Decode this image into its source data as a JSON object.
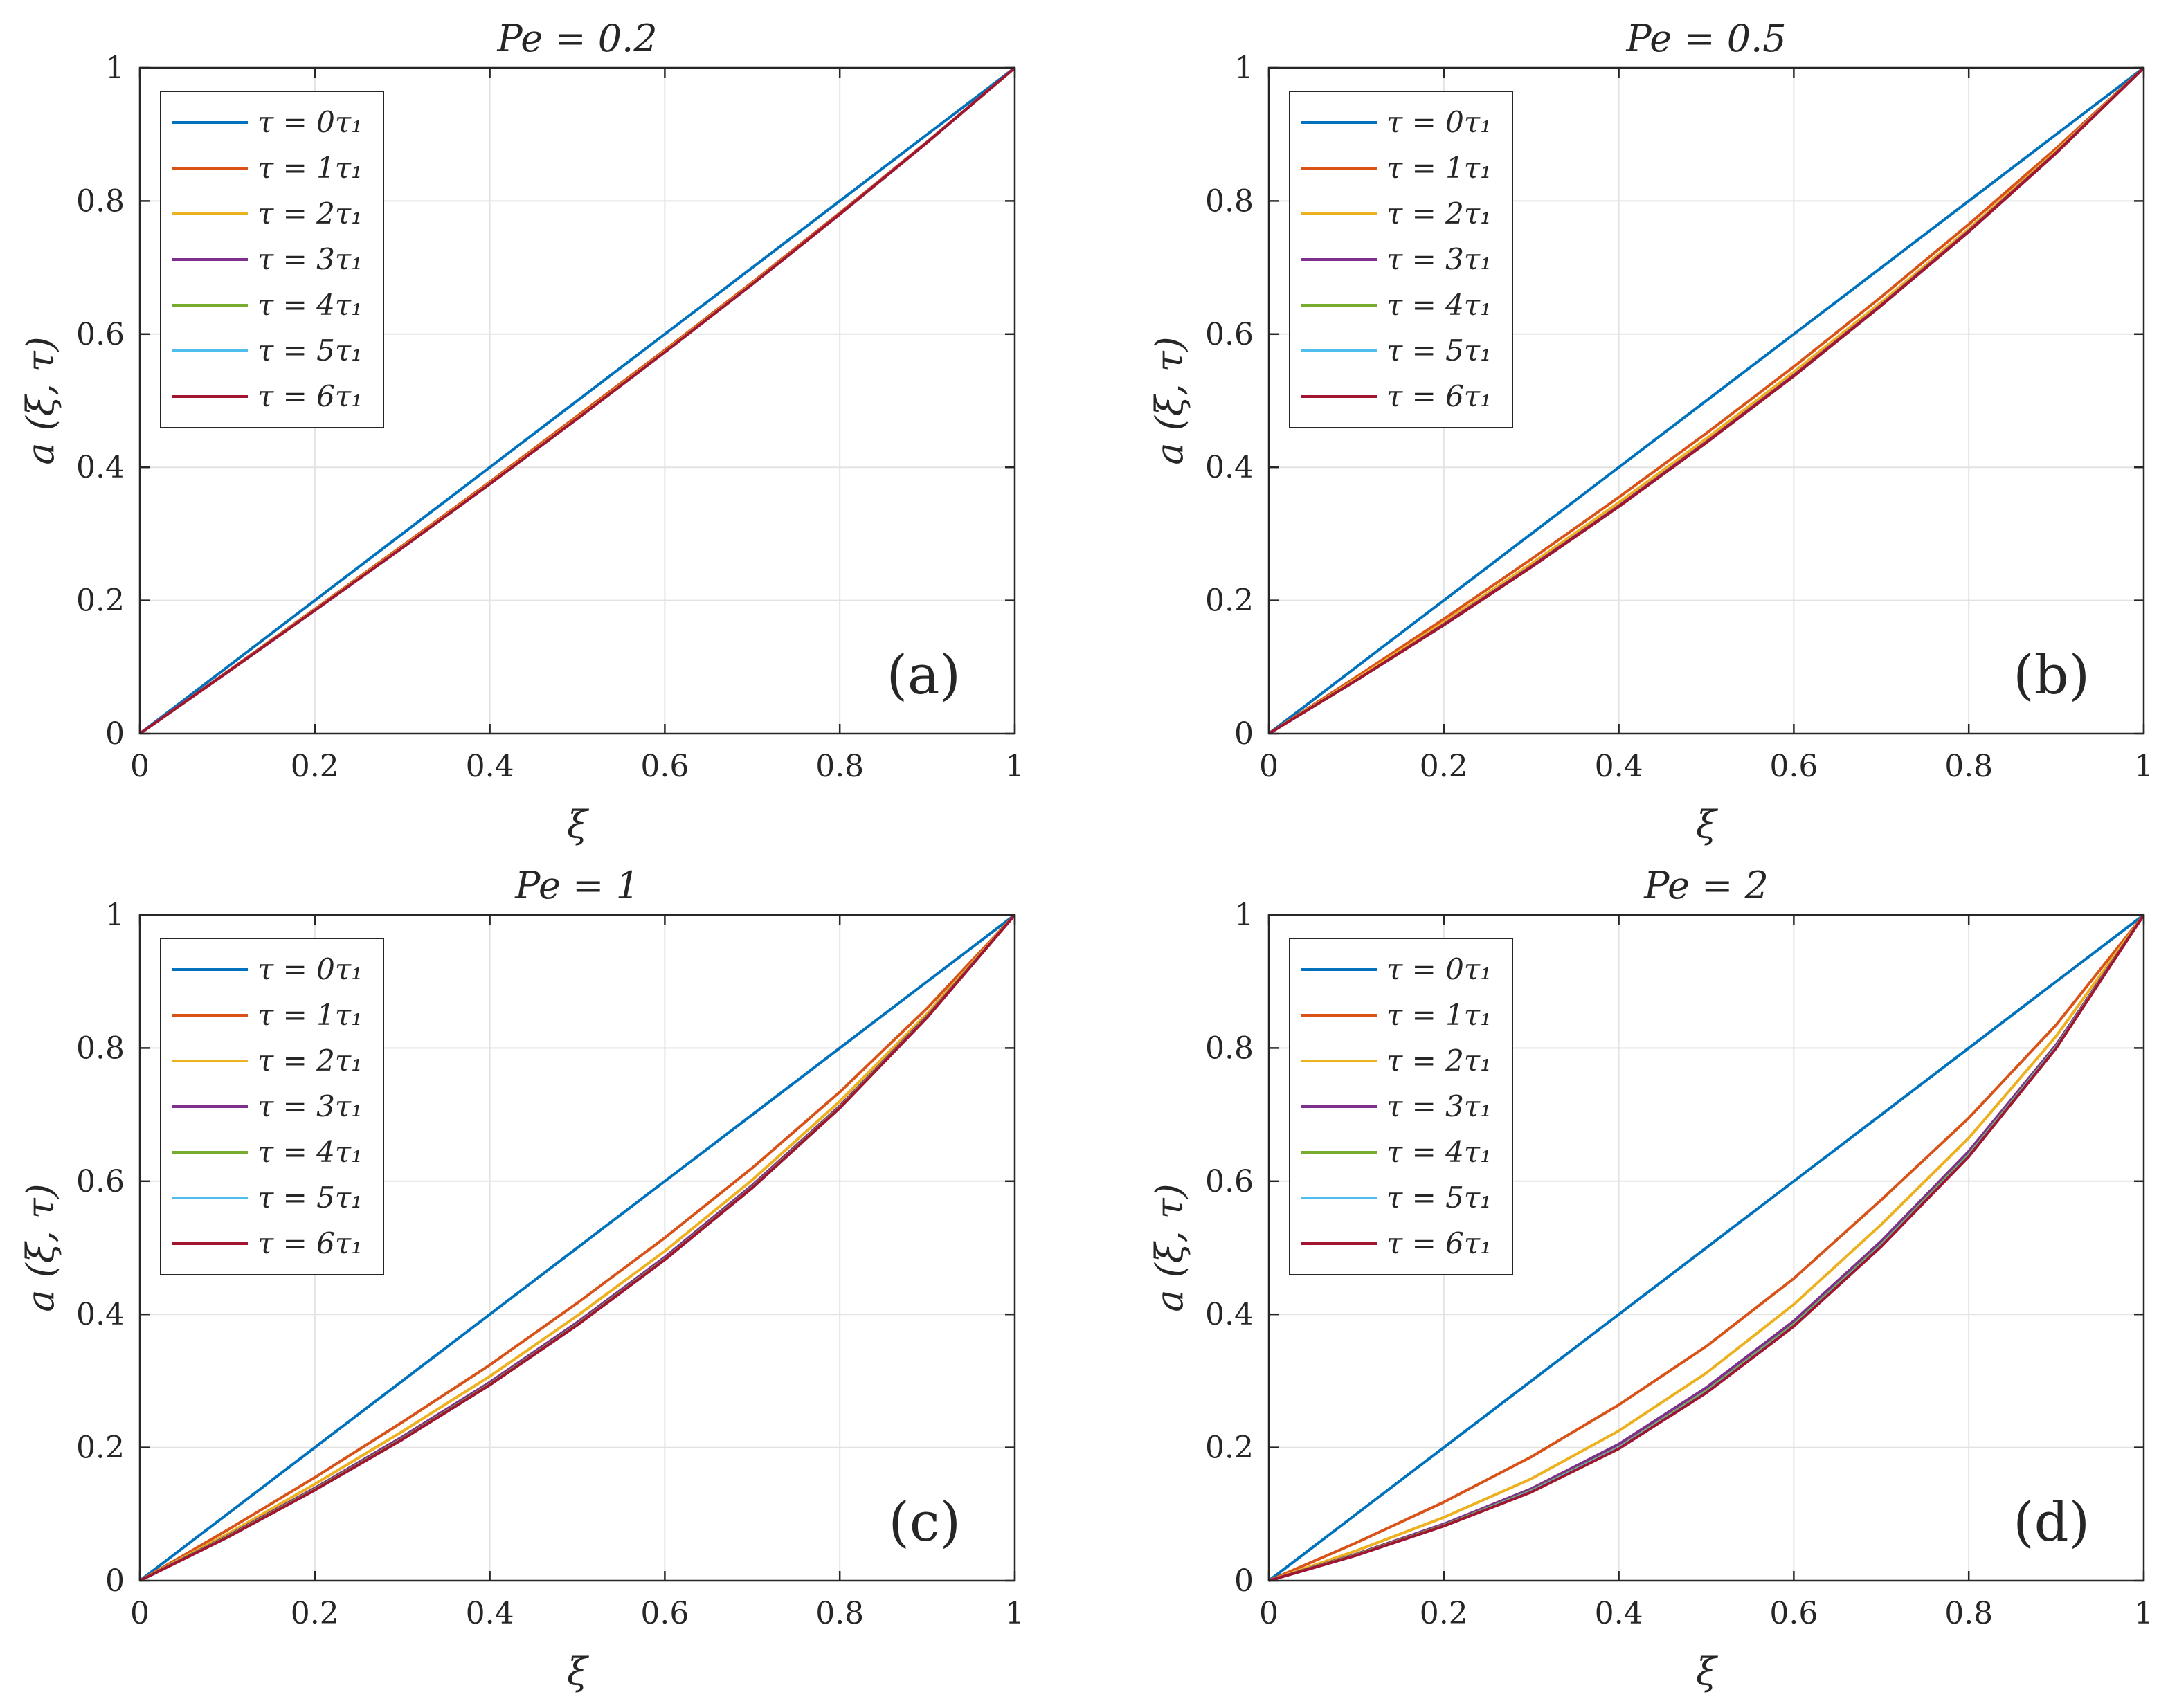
{
  "figure": {
    "x_tick_labels": [
      "0",
      "0.2",
      "0.4",
      "0.6",
      "0.8",
      "1"
    ],
    "y_tick_labels": [
      "0",
      "0.2",
      "0.4",
      "0.6",
      "0.8",
      "1"
    ]
  },
  "chart_data": [
    {
      "type": "line",
      "title": "Pe = 0.2",
      "xlabel": "ξ",
      "ylabel": "a (ξ, τ)",
      "panel_label": "(a)",
      "xlim": [
        0,
        1
      ],
      "ylim": [
        0,
        1
      ],
      "grid": true,
      "legend_position": "top-left",
      "x": [
        0,
        0.1,
        0.2,
        0.3,
        0.4,
        0.5,
        0.6,
        0.7,
        0.8,
        0.9,
        1
      ],
      "series": [
        {
          "name": "τ = 0τ₁",
          "color": "#0072BD",
          "values": [
            0,
            0.1,
            0.2,
            0.3,
            0.4,
            0.5,
            0.6,
            0.7,
            0.8,
            0.9,
            1
          ]
        },
        {
          "name": "τ = 1τ₁",
          "color": "#D95319",
          "values": [
            0,
            0.093,
            0.187,
            0.282,
            0.378,
            0.477,
            0.576,
            0.678,
            0.782,
            0.889,
            1
          ]
        },
        {
          "name": "τ = 2τ₁",
          "color": "#EDB120",
          "values": [
            0,
            0.092,
            0.186,
            0.28,
            0.376,
            0.474,
            0.574,
            0.676,
            0.78,
            0.888,
            1
          ]
        },
        {
          "name": "τ = 3τ₁",
          "color": "#7E2F8E",
          "values": [
            0,
            0.092,
            0.185,
            0.279,
            0.375,
            0.473,
            0.573,
            0.675,
            0.78,
            0.888,
            1
          ]
        },
        {
          "name": "τ = 4τ₁",
          "color": "#77AC30",
          "values": [
            0,
            0.092,
            0.185,
            0.279,
            0.375,
            0.473,
            0.573,
            0.675,
            0.78,
            0.888,
            1
          ]
        },
        {
          "name": "τ = 5τ₁",
          "color": "#4DBEEE",
          "values": [
            0,
            0.092,
            0.185,
            0.279,
            0.375,
            0.473,
            0.573,
            0.675,
            0.78,
            0.888,
            1
          ]
        },
        {
          "name": "τ = 6τ₁",
          "color": "#A2142F",
          "values": [
            0,
            0.092,
            0.185,
            0.279,
            0.375,
            0.473,
            0.573,
            0.675,
            0.78,
            0.888,
            1
          ]
        }
      ]
    },
    {
      "type": "line",
      "title": "Pe = 0.5",
      "xlabel": "ξ",
      "ylabel": "a (ξ, τ)",
      "panel_label": "(b)",
      "xlim": [
        0,
        1
      ],
      "ylim": [
        0,
        1
      ],
      "grid": true,
      "legend_position": "top-left",
      "x": [
        0,
        0.1,
        0.2,
        0.3,
        0.4,
        0.5,
        0.6,
        0.7,
        0.8,
        0.9,
        1
      ],
      "series": [
        {
          "name": "τ = 0τ₁",
          "color": "#0072BD",
          "values": [
            0,
            0.1,
            0.2,
            0.3,
            0.4,
            0.5,
            0.6,
            0.7,
            0.8,
            0.9,
            1
          ]
        },
        {
          "name": "τ = 1τ₁",
          "color": "#D95319",
          "values": [
            0,
            0.085,
            0.172,
            0.262,
            0.355,
            0.451,
            0.551,
            0.656,
            0.765,
            0.879,
            1
          ]
        },
        {
          "name": "τ = 2τ₁",
          "color": "#EDB120",
          "values": [
            0,
            0.082,
            0.167,
            0.255,
            0.347,
            0.443,
            0.543,
            0.648,
            0.758,
            0.875,
            1
          ]
        },
        {
          "name": "τ = 3τ₁",
          "color": "#7E2F8E",
          "values": [
            0,
            0.08,
            0.164,
            0.251,
            0.342,
            0.438,
            0.538,
            0.644,
            0.755,
            0.873,
            1
          ]
        },
        {
          "name": "τ = 4τ₁",
          "color": "#77AC30",
          "values": [
            0,
            0.08,
            0.163,
            0.25,
            0.341,
            0.437,
            0.537,
            0.643,
            0.754,
            0.872,
            1
          ]
        },
        {
          "name": "τ = 5τ₁",
          "color": "#4DBEEE",
          "values": [
            0,
            0.08,
            0.163,
            0.25,
            0.341,
            0.437,
            0.537,
            0.643,
            0.754,
            0.872,
            1
          ]
        },
        {
          "name": "τ = 6τ₁",
          "color": "#A2142F",
          "values": [
            0,
            0.08,
            0.163,
            0.25,
            0.341,
            0.437,
            0.537,
            0.643,
            0.754,
            0.872,
            1
          ]
        }
      ]
    },
    {
      "type": "line",
      "title": "Pe = 1",
      "xlabel": "ξ",
      "ylabel": "a (ξ, τ)",
      "panel_label": "(c)",
      "xlim": [
        0,
        1
      ],
      "ylim": [
        0,
        1
      ],
      "grid": true,
      "legend_position": "top-left",
      "x": [
        0,
        0.1,
        0.2,
        0.3,
        0.4,
        0.5,
        0.6,
        0.7,
        0.8,
        0.9,
        1
      ],
      "series": [
        {
          "name": "τ = 0τ₁",
          "color": "#0072BD",
          "values": [
            0,
            0.1,
            0.2,
            0.3,
            0.4,
            0.5,
            0.6,
            0.7,
            0.8,
            0.9,
            1
          ]
        },
        {
          "name": "τ = 1τ₁",
          "color": "#D95319",
          "values": [
            0,
            0.076,
            0.155,
            0.238,
            0.324,
            0.417,
            0.515,
            0.62,
            0.734,
            0.86,
            1
          ]
        },
        {
          "name": "τ = 2τ₁",
          "color": "#EDB120",
          "values": [
            0,
            0.07,
            0.145,
            0.224,
            0.307,
            0.398,
            0.495,
            0.602,
            0.72,
            0.852,
            1
          ]
        },
        {
          "name": "τ = 3τ₁",
          "color": "#7E2F8E",
          "values": [
            0,
            0.067,
            0.139,
            0.216,
            0.298,
            0.388,
            0.486,
            0.594,
            0.713,
            0.848,
            1
          ]
        },
        {
          "name": "τ = 4τ₁",
          "color": "#77AC30",
          "values": [
            0,
            0.066,
            0.137,
            0.213,
            0.295,
            0.385,
            0.483,
            0.591,
            0.711,
            0.847,
            1
          ]
        },
        {
          "name": "τ = 5τ₁",
          "color": "#4DBEEE",
          "values": [
            0,
            0.065,
            0.136,
            0.212,
            0.294,
            0.384,
            0.482,
            0.59,
            0.71,
            0.846,
            1
          ]
        },
        {
          "name": "τ = 6τ₁",
          "color": "#A2142F",
          "values": [
            0,
            0.065,
            0.136,
            0.212,
            0.294,
            0.384,
            0.482,
            0.59,
            0.71,
            0.846,
            1
          ]
        }
      ]
    },
    {
      "type": "line",
      "title": "Pe = 2",
      "xlabel": "ξ",
      "ylabel": "a (ξ, τ)",
      "panel_label": "(d)",
      "xlim": [
        0,
        1
      ],
      "ylim": [
        0,
        1
      ],
      "grid": true,
      "legend_position": "top-left",
      "x": [
        0,
        0.1,
        0.2,
        0.3,
        0.4,
        0.5,
        0.6,
        0.7,
        0.8,
        0.9,
        1
      ],
      "series": [
        {
          "name": "τ = 0τ₁",
          "color": "#0072BD",
          "values": [
            0,
            0.1,
            0.2,
            0.3,
            0.4,
            0.5,
            0.6,
            0.7,
            0.8,
            0.9,
            1
          ]
        },
        {
          "name": "τ = 1τ₁",
          "color": "#D95319",
          "values": [
            0,
            0.057,
            0.118,
            0.186,
            0.264,
            0.352,
            0.454,
            0.572,
            0.695,
            0.835,
            1
          ]
        },
        {
          "name": "τ = 2τ₁",
          "color": "#EDB120",
          "values": [
            0,
            0.045,
            0.095,
            0.153,
            0.225,
            0.312,
            0.415,
            0.535,
            0.665,
            0.818,
            1
          ]
        },
        {
          "name": "τ = 3τ₁",
          "color": "#7E2F8E",
          "values": [
            0,
            0.04,
            0.085,
            0.138,
            0.205,
            0.29,
            0.39,
            0.51,
            0.645,
            0.805,
            1
          ]
        },
        {
          "name": "τ = 4τ₁",
          "color": "#77AC30",
          "values": [
            0,
            0.039,
            0.083,
            0.135,
            0.2,
            0.285,
            0.385,
            0.505,
            0.64,
            0.802,
            1
          ]
        },
        {
          "name": "τ = 5τ₁",
          "color": "#4DBEEE",
          "values": [
            0,
            0.038,
            0.082,
            0.134,
            0.199,
            0.283,
            0.383,
            0.503,
            0.638,
            0.801,
            1
          ]
        },
        {
          "name": "τ = 6τ₁",
          "color": "#A2142F",
          "values": [
            0,
            0.038,
            0.082,
            0.133,
            0.198,
            0.282,
            0.382,
            0.502,
            0.637,
            0.8,
            1
          ]
        }
      ]
    }
  ]
}
